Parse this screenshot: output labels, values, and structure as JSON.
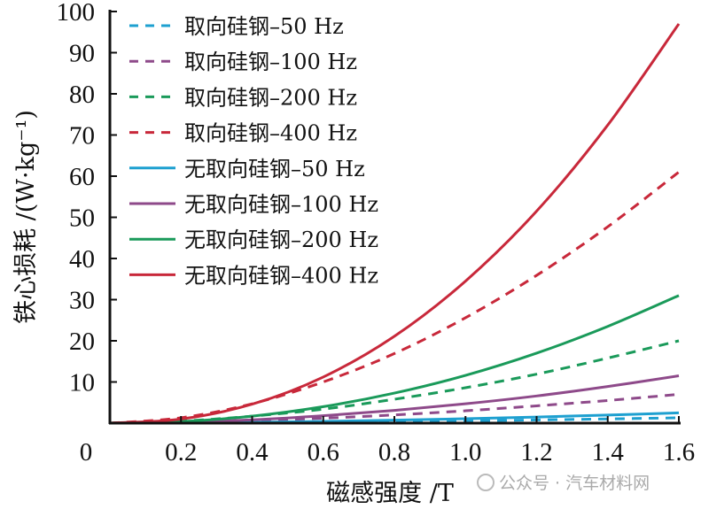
{
  "chart_data": {
    "type": "line",
    "title": "",
    "xlabel": "磁感强度 /T",
    "ylabel": "铁心损耗 /(W·kg⁻¹)",
    "xlim": [
      0,
      1.6
    ],
    "ylim": [
      0,
      100
    ],
    "x_ticks": [
      "0",
      "0.2",
      "0.4",
      "0.6",
      "0.8",
      "1.0",
      "1.2",
      "1.4",
      "1.6"
    ],
    "y_ticks": [
      "10",
      "20",
      "30",
      "40",
      "50",
      "60",
      "70",
      "80",
      "90",
      "100"
    ],
    "grid": false,
    "legend_position": "top-left",
    "x": [
      0,
      0.2,
      0.4,
      0.6,
      0.8,
      1.0,
      1.2,
      1.4,
      1.6
    ],
    "series": [
      {
        "name": "取向硅钢–50 Hz",
        "color": "#1ea0d0",
        "dash": true,
        "values": [
          0,
          0.03,
          0.11,
          0.22,
          0.37,
          0.56,
          0.78,
          1.02,
          1.3
        ]
      },
      {
        "name": "取向硅钢–100 Hz",
        "color": "#8e4a8a",
        "dash": true,
        "values": [
          0,
          0.2,
          0.6,
          1.2,
          2.0,
          3.0,
          4.2,
          5.5,
          7.0
        ]
      },
      {
        "name": "取向硅钢–200 Hz",
        "color": "#1a9a5a",
        "dash": true,
        "values": [
          0,
          0.5,
          1.7,
          3.4,
          5.8,
          8.6,
          11.9,
          15.8,
          20
        ]
      },
      {
        "name": "取向硅钢–400 Hz",
        "color": "#c8283a",
        "dash": true,
        "values": [
          0,
          1.3,
          4.7,
          10.0,
          16.9,
          25.6,
          35.9,
          47.7,
          61
        ]
      },
      {
        "name": "无取向硅钢–50 Hz",
        "color": "#1ea0d0",
        "dash": false,
        "values": [
          0,
          0.06,
          0.2,
          0.43,
          0.72,
          1.07,
          1.49,
          1.96,
          2.5
        ]
      },
      {
        "name": "无取向硅钢–100 Hz",
        "color": "#8e4a8a",
        "dash": false,
        "values": [
          0,
          0.2,
          0.8,
          1.8,
          3.1,
          4.7,
          6.6,
          8.9,
          11.5
        ]
      },
      {
        "name": "无取向硅钢–200 Hz",
        "color": "#1a9a5a",
        "dash": false,
        "values": [
          0,
          0.4,
          1.7,
          4.0,
          7.3,
          11.6,
          17.0,
          23.5,
          31
        ]
      },
      {
        "name": "无取向硅钢–400 Hz",
        "color": "#c8283a",
        "dash": false,
        "values": [
          0,
          1.0,
          4.6,
          11.2,
          21.1,
          34.5,
          51.5,
          72.4,
          97
        ]
      }
    ]
  },
  "watermark": "公众号 · 汽车材料网"
}
